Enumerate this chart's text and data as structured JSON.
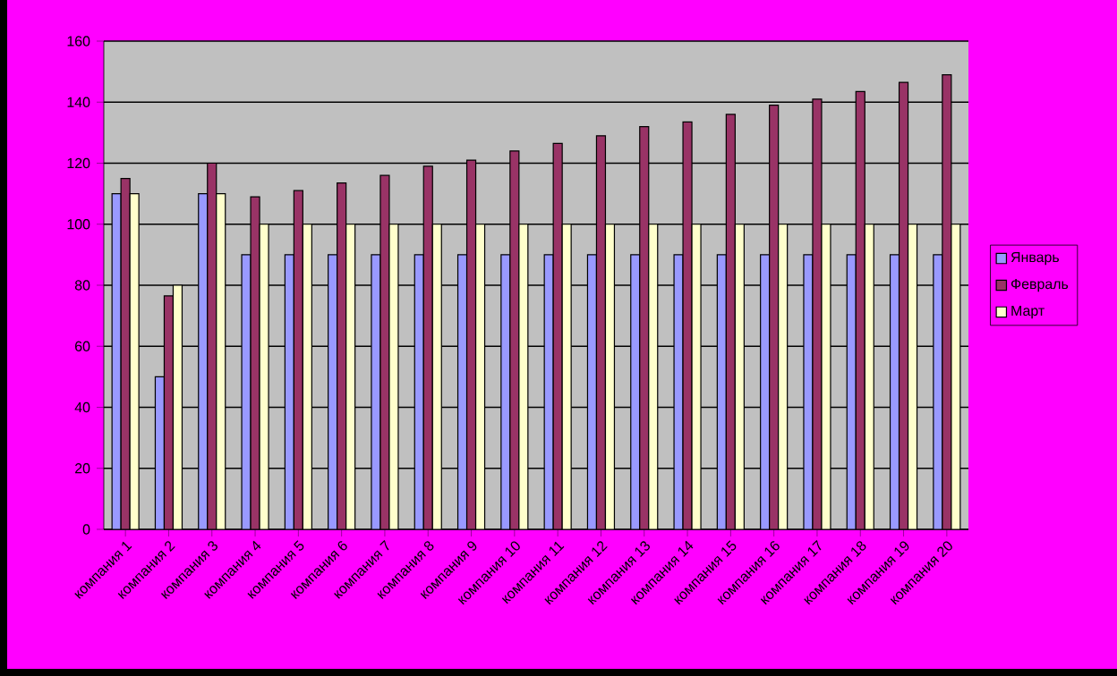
{
  "chart_data": {
    "type": "bar",
    "categories": [
      "компания 1",
      "компания 2",
      "компания 3",
      "компания 4",
      "компания 5",
      "компания 6",
      "компания 7",
      "компания 8",
      "компания 9",
      "компания 10",
      "компания 11",
      "компания 12",
      "компания 13",
      "компания 14",
      "компания 15",
      "компания 16",
      "компания 17",
      "компания 18",
      "компания 19",
      "компания 20"
    ],
    "series": [
      {
        "name": "Январь",
        "color": "#9999ff",
        "values": [
          110,
          50,
          110,
          90,
          90,
          90,
          90,
          90,
          90,
          90,
          90,
          90,
          90,
          90,
          90,
          90,
          90,
          90,
          90,
          90
        ]
      },
      {
        "name": "Февраль",
        "color": "#993366",
        "values": [
          115,
          76.5,
          120,
          109,
          111,
          113.5,
          116,
          119,
          121,
          124,
          126.5,
          129,
          132,
          133.5,
          136,
          139,
          141,
          143.5,
          146.5,
          149
        ]
      },
      {
        "name": "Март",
        "color": "#ffffcc",
        "values": [
          110,
          80,
          110,
          100,
          100,
          100,
          100,
          100,
          100,
          100,
          100,
          100,
          100,
          100,
          100,
          100,
          100,
          100,
          100,
          100
        ]
      }
    ],
    "ylim": [
      0,
      160
    ],
    "yticks": [
      0,
      20,
      40,
      60,
      80,
      100,
      120,
      140,
      160
    ],
    "grid": "y",
    "legend": "right"
  }
}
